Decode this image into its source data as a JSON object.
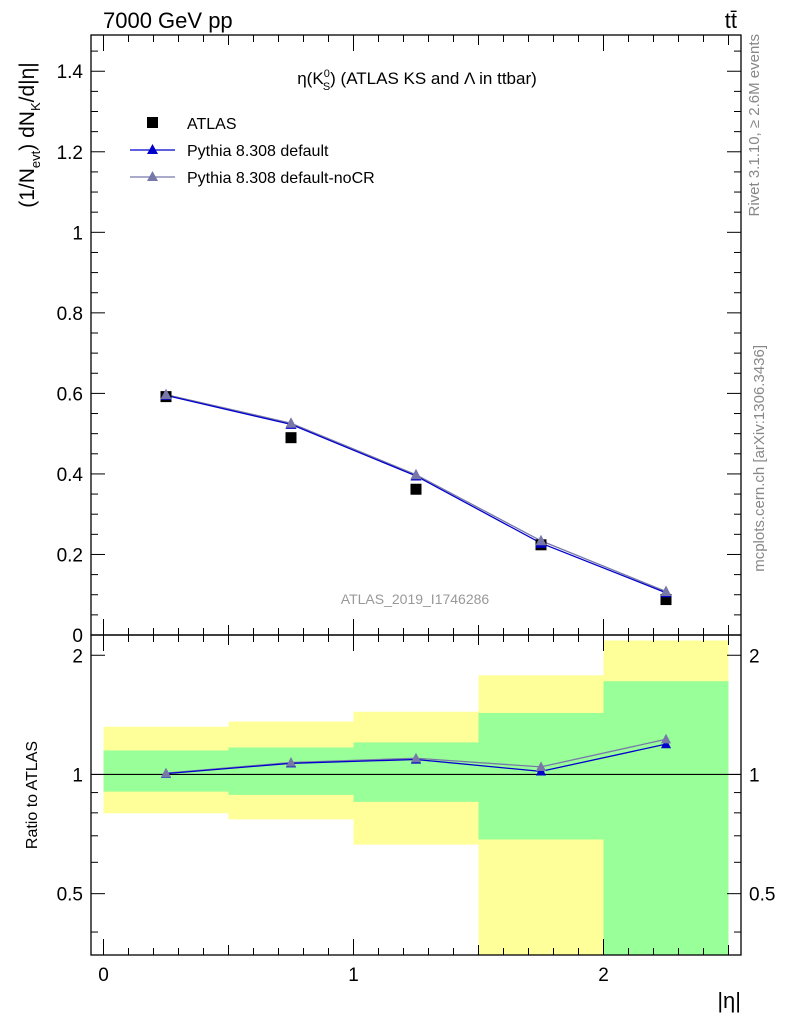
{
  "header": {
    "energy_label": "7000 GeV pp",
    "process_label": "tt̄",
    "rivet_label": "Rivet 3.1.10, ≥ 2.6M events",
    "mcplots_label": "mcplots.cern.ch [arXiv:1306.3436]",
    "analysis_id": "ATLAS_2019_I1746286"
  },
  "colors": {
    "data": "#000000",
    "pythia_default": "#0000cc",
    "pythia_nocr": "#7777aa",
    "band_inner": "#99ff99",
    "band_outer": "#ffff99"
  },
  "chart_data": [
    {
      "type": "scatter",
      "title": "η(K⁰S) (ATLAS KS and Λ in ttbar)",
      "title_parts": {
        "pre": "η(K",
        "sup": "0",
        "sub": "S",
        "post": ") (ATLAS KS and Λ in ttbar)"
      },
      "ylabel": "(1/Nevt) dNK/d|η|",
      "ylabel_parts": {
        "a": "(1/N",
        "sub1": "evt",
        "b": ") dN",
        "sub2": "K",
        "c": "/d|η|"
      },
      "xlabel": "",
      "xlim": [
        -0.05,
        2.55
      ],
      "ylim": [
        0,
        1.49
      ],
      "yticks": [
        0,
        0.2,
        0.4,
        0.6,
        0.8,
        1,
        1.2,
        1.4
      ],
      "ytick_labels": [
        "0",
        "0.2",
        "0.4",
        "0.6",
        "0.8",
        "1",
        "1.2",
        "1.4"
      ],
      "legend": {
        "position": "top-left"
      },
      "x": [
        0.25,
        0.75,
        1.25,
        1.75,
        2.25
      ],
      "series": [
        {
          "name": "ATLAS",
          "marker": "square",
          "values": [
            0.592,
            0.49,
            0.362,
            0.224,
            0.088
          ]
        },
        {
          "name": "Pythia 8.308 default",
          "marker": "triangle",
          "values": [
            0.595,
            0.523,
            0.395,
            0.228,
            0.105
          ]
        },
        {
          "name": "Pythia 8.308 default-noCR",
          "marker": "triangle",
          "values": [
            0.597,
            0.526,
            0.398,
            0.234,
            0.108
          ]
        }
      ]
    },
    {
      "type": "line",
      "ylabel": "Ratio to ATLAS",
      "xlabel": "|η|",
      "xlim": [
        -0.05,
        2.55
      ],
      "ylim": [
        0.35,
        2.25
      ],
      "yscale": "log",
      "reference_line": 1,
      "yticks": [
        0.5,
        1,
        2
      ],
      "ytick_labels": [
        "0.5",
        "1",
        "2"
      ],
      "xticks": [
        0,
        1,
        2
      ],
      "xtick_labels": [
        "0",
        "1",
        "2"
      ],
      "bins": [
        [
          0,
          0.5
        ],
        [
          0.5,
          1
        ],
        [
          1,
          1.5
        ],
        [
          1.5,
          2
        ],
        [
          2,
          2.5
        ]
      ],
      "band_inner": [
        [
          0.905,
          1.15
        ],
        [
          0.888,
          1.17
        ],
        [
          0.853,
          1.205
        ],
        [
          0.685,
          1.43
        ],
        [
          0.35,
          1.72
        ]
      ],
      "band_outer": [
        [
          0.798,
          1.32
        ],
        [
          0.77,
          1.36
        ],
        [
          0.665,
          1.44
        ],
        [
          0.35,
          1.78
        ],
        [
          0.35,
          2.18
        ]
      ],
      "x": [
        0.25,
        0.75,
        1.25,
        1.75,
        2.25
      ],
      "series": [
        {
          "name": "Pythia 8.308 default",
          "values": [
            1.005,
            1.067,
            1.091,
            1.018,
            1.193
          ]
        },
        {
          "name": "Pythia 8.308 default-noCR",
          "values": [
            1.008,
            1.072,
            1.099,
            1.045,
            1.227
          ]
        }
      ]
    }
  ]
}
